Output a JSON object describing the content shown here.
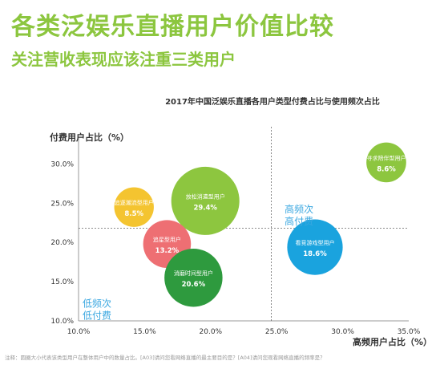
{
  "header": {
    "title": "各类泛娱乐直播用户价值比较",
    "subtitle": "关注营收表现应该注重三类用户"
  },
  "footnote": "注释：圆圈大小代表该类型用户在整体用户中的数量占比。[A03]请问您看网络直播的最主要目的是？[A04]请问您观看网络直播的频率是？",
  "colors": {
    "accent": "#8cc63f",
    "quadrant_text": "#3aa7e0",
    "lime": "#8dc63f",
    "yellow": "#f4c430",
    "pink": "#ee6f73",
    "green": "#2e9a3e",
    "blue": "#1aa3de"
  },
  "chart_data": {
    "type": "scatter",
    "title": "2017年中国泛娱乐直播各用户类型付费占比与使用频次占比",
    "xlabel": "高频用户占比（%）",
    "ylabel": "付费用户占比（%）",
    "xlim": [
      10.0,
      35.0
    ],
    "ylim": [
      10.0,
      32.5
    ],
    "x_ticks": [
      "10.0%",
      "15.0%",
      "20.0%",
      "25.0%",
      "30.0%",
      "35.0%"
    ],
    "y_ticks": [
      "10.0%",
      "15.0%",
      "20.0%",
      "25.0%",
      "30.0%"
    ],
    "reference_lines": {
      "x": 24.6,
      "y": 21.8
    },
    "quadrant_labels": [
      {
        "text": [
          "高频次",
          "高付费"
        ],
        "x": 25.6,
        "y": 23.8
      },
      {
        "text": [
          "低频次",
          "低付费"
        ],
        "x": 10.3,
        "y": 11.8
      }
    ],
    "series": [
      {
        "label": "寻求陪伴型用户",
        "x": 33.3,
        "y": 30.2,
        "size": 8.6,
        "color": "#8dc63f"
      },
      {
        "label": "放松消遣型用户",
        "x": 19.6,
        "y": 25.3,
        "size": 29.4,
        "color": "#8dc63f"
      },
      {
        "label": "追逐潮流型用户",
        "x": 14.2,
        "y": 24.5,
        "size": 8.5,
        "color": "#f4c430"
      },
      {
        "label": "追星型用户",
        "x": 16.7,
        "y": 19.8,
        "size": 13.2,
        "color": "#ee6f73"
      },
      {
        "label": "消磨时间型用户",
        "x": 18.7,
        "y": 15.5,
        "size": 20.6,
        "color": "#2e9a3e"
      },
      {
        "label": "看竞游戏型用户",
        "x": 27.9,
        "y": 19.4,
        "size": 18.6,
        "color": "#1aa3de"
      }
    ]
  }
}
